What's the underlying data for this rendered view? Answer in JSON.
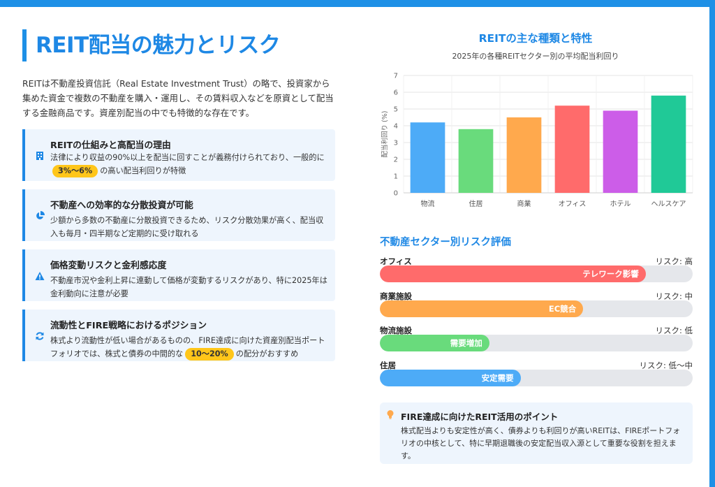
{
  "colors": {
    "accent": "#1e88e5",
    "highlight": "#ffc61a",
    "card_bg": "#eef5fd"
  },
  "title": "REIT配当の魅力とリスク",
  "intro": "REITは不動産投資信託（Real Estate Investment Trust）の略で、投資家から集めた資金で複数の不動産を購入・運用し、その賃料収入などを原資として配当する金融商品です。資産別配当の中でも特徴的な存在です。",
  "cards": [
    {
      "icon": "building-icon",
      "title": "REITの仕組みと高配当の理由",
      "body_pre": "法律により収益の90%以上を配当に回すことが義務付けられており、一般的に",
      "highlight": "3%〜6%",
      "body_post": "の高い配当利回りが特徴"
    },
    {
      "icon": "pie-chart-icon",
      "title": "不動産への効率的な分散投資が可能",
      "body": "少額から多数の不動産に分散投資できるため、リスク分散効果が高く、配当収入も毎月・四半期など定期的に受け取れる"
    },
    {
      "icon": "warning-icon",
      "title": "価格変動リスクと金利感応度",
      "body": "不動産市況や金利上昇に連動して価格が変動するリスクがあり、特に2025年は金利動向に注意が必要"
    },
    {
      "icon": "refresh-icon",
      "title": "流動性とFIRE戦略におけるポジション",
      "body_pre": "株式より流動性が低い場合があるものの、FIRE達成に向けた資産別配当ポートフォリオでは、株式と債券の中間的な",
      "highlight": "10〜20%",
      "body_post": "の配分がおすすめ"
    }
  ],
  "chart_data": {
    "type": "bar",
    "title": "REITの主な種類と特性",
    "subtitle": "2025年の各種REITセクター別の平均配当利回り",
    "categories": [
      "物流",
      "住居",
      "商業",
      "オフィス",
      "ホテル",
      "ヘルスケア"
    ],
    "values": [
      4.2,
      3.8,
      4.5,
      5.2,
      4.9,
      5.8
    ],
    "colors": [
      "#4dabf7",
      "#69db7c",
      "#ffa94d",
      "#ff6b6b",
      "#cc5de8",
      "#20c997"
    ],
    "ylabel": "配当利回り (%)",
    "xlabel": "",
    "ylim": [
      0,
      7
    ],
    "yticks": [
      0,
      1,
      2,
      3,
      4,
      5,
      6,
      7
    ],
    "grid": true,
    "legend": "none"
  },
  "risk": {
    "title": "不動産セクター別リスク評価",
    "items": [
      {
        "name": "オフィス",
        "level": "リスク: 高",
        "label": "テレワーク影響",
        "value": 0.85,
        "color": "#ff6b6b"
      },
      {
        "name": "商業施設",
        "level": "リスク: 中",
        "label": "EC競合",
        "value": 0.65,
        "color": "#ffa94d"
      },
      {
        "name": "物流施設",
        "level": "リスク: 低",
        "label": "需要増加",
        "value": 0.35,
        "color": "#69db7c"
      },
      {
        "name": "住居",
        "level": "リスク: 低〜中",
        "label": "安定需要",
        "value": 0.45,
        "color": "#4dabf7"
      }
    ]
  },
  "tip": {
    "title": "FIRE達成に向けたREIT活用のポイント",
    "body": "株式配当よりも安定性が高く、債券よりも利回りが高いREITは、FIREポートフォリオの中核として、特に早期退職後の安定配当収入源として重要な役割を担えます。"
  }
}
